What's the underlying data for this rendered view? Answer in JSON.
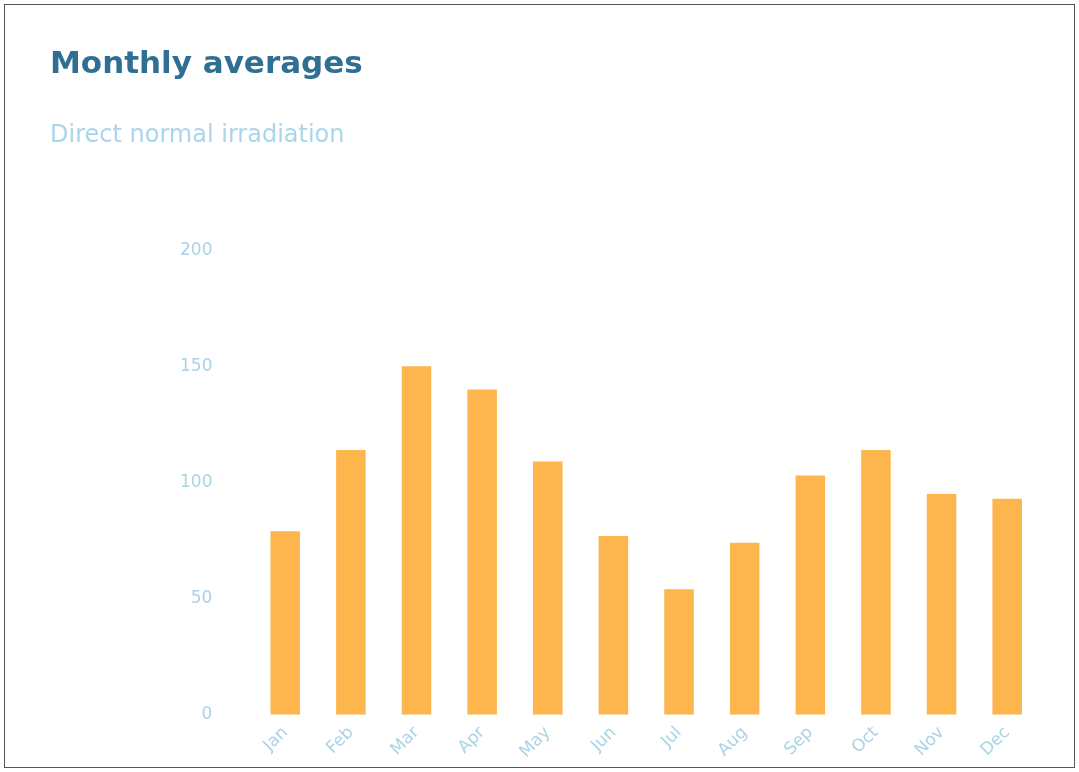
{
  "chart_data": {
    "type": "bar",
    "title": "Monthly averages",
    "subtitle": "Direct normal irradiation",
    "categories": [
      "Jan",
      "Feb",
      "Mar",
      "Apr",
      "May",
      "Jun",
      "Jul",
      "Aug",
      "Sep",
      "Oct",
      "Nov",
      "Dec"
    ],
    "values": [
      79,
      114,
      150,
      140,
      109,
      77,
      54,
      74,
      103,
      114,
      95,
      93
    ],
    "color": "#fdb64e",
    "ylim": [
      0,
      200
    ],
    "yticks": [
      0,
      50,
      100,
      150,
      200
    ],
    "grid": false
  }
}
